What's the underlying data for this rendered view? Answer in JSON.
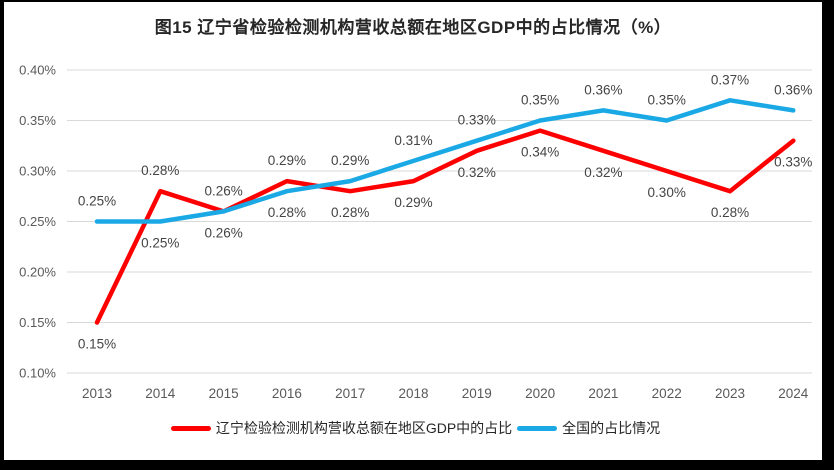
{
  "title": "图15 辽宁省检验检测机构营收总额在地区GDP中的占比情况（%）",
  "colors": {
    "liaoning_line": "#FE0000",
    "national_line": "#1BA9E6",
    "gridline": "#D9D9D9",
    "axis_text": "#595959",
    "data_label_text": "#444444",
    "title_text": "#262626",
    "frame": "#000000",
    "background": "#FFFFFF"
  },
  "chart_data": {
    "type": "line",
    "title": "图15 辽宁省检验检测机构营收总额在地区GDP中的占比情况（%）",
    "categories": [
      "2013",
      "2014",
      "2015",
      "2016",
      "2017",
      "2018",
      "2019",
      "2020",
      "2021",
      "2022",
      "2023",
      "2024"
    ],
    "series": [
      {
        "name": "辽宁检验检测机构营收总额在地区GDP中的占比",
        "color_key": "liaoning_line",
        "values": [
          0.15,
          0.28,
          0.26,
          0.29,
          0.28,
          0.29,
          0.32,
          0.34,
          0.32,
          0.3,
          0.28,
          0.33
        ],
        "point_labels": [
          "0.15%",
          "0.28%",
          "0.26%",
          "0.29%",
          "0.28%",
          "0.29%",
          "0.32%",
          "0.34%",
          "0.32%",
          "0.30%",
          "0.28%",
          "0.33%"
        ]
      },
      {
        "name": "全国的占比情况",
        "color_key": "national_line",
        "values": [
          0.25,
          0.25,
          0.26,
          0.28,
          0.29,
          0.31,
          0.33,
          0.35,
          0.36,
          0.35,
          0.37,
          0.36
        ],
        "point_labels": [
          "0.25%",
          "0.25%",
          "0.26%",
          "0.28%",
          "0.29%",
          "0.31%",
          "0.33%",
          "0.35%",
          "0.36%",
          "0.35%",
          "0.37%",
          "0.36%"
        ]
      }
    ],
    "y_axis": {
      "tick_labels": [
        "0.40%",
        "0.35%",
        "0.30%",
        "0.25%",
        "0.20%",
        "0.15%",
        "0.10%"
      ],
      "tick_values": [
        0.4,
        0.35,
        0.3,
        0.25,
        0.2,
        0.15,
        0.1
      ],
      "min": 0.1,
      "max": 0.4
    },
    "xlabel": "",
    "ylabel": "",
    "grid": "horizontal",
    "legend_position": "bottom"
  }
}
